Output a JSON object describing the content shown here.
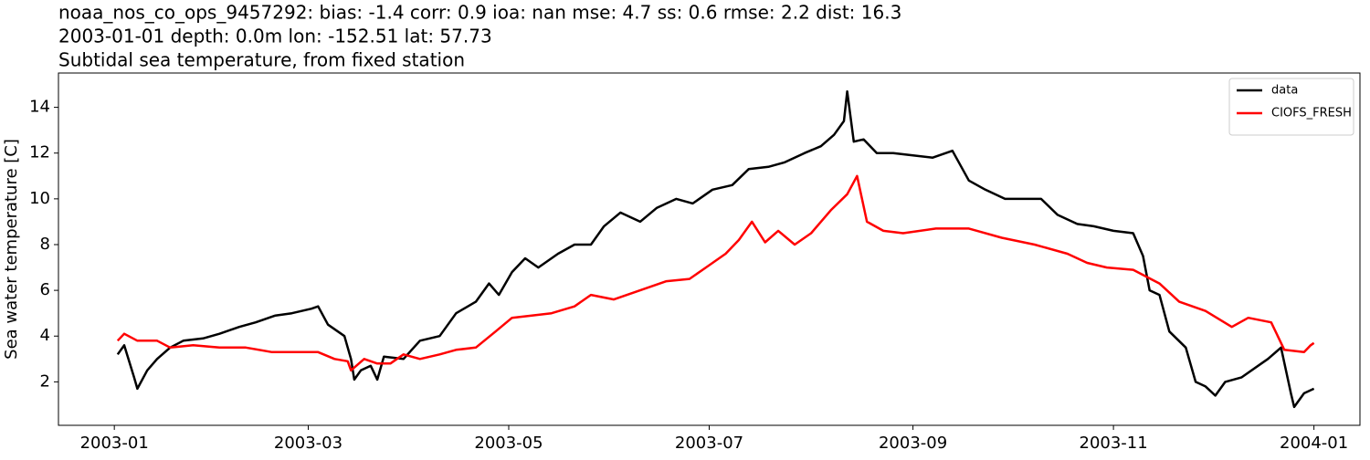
{
  "chart_data": {
    "type": "line",
    "title": "noaa_nos_co_ops_9457292: bias: -1.4  corr: 0.9  ioa: nan  mse: 4.7  ss: 0.6  rmse: 2.2  dist: 16.3",
    "subtitle": "2003-01-01 depth: 0.0m lon: -152.51 lat: 57.73",
    "subtitle2": "Subtidal sea temperature, from fixed station",
    "y_label": "Sea water temperature [C]",
    "xlim": [
      -17,
      379
    ],
    "ylim": [
      0.1,
      15.5
    ],
    "xticks": [
      {
        "value": 0,
        "label": "2003-01"
      },
      {
        "value": 59,
        "label": "2003-03"
      },
      {
        "value": 120,
        "label": "2003-05"
      },
      {
        "value": 181,
        "label": "2003-07"
      },
      {
        "value": 243,
        "label": "2003-09"
      },
      {
        "value": 304,
        "label": "2003-11"
      },
      {
        "value": 365,
        "label": "2004-01"
      }
    ],
    "yticks": [
      2,
      4,
      6,
      8,
      10,
      12,
      14
    ],
    "legend": "upper right",
    "series": [
      {
        "name": "data",
        "color": "#000000",
        "x": [
          1,
          3,
          6,
          7,
          10,
          13,
          17,
          21,
          27,
          32,
          38,
          43,
          49,
          54,
          60,
          62,
          65,
          70,
          72,
          73,
          75,
          78,
          80,
          82,
          88,
          93,
          99,
          104,
          110,
          114,
          117,
          121,
          125,
          129,
          135,
          140,
          145,
          149,
          154,
          160,
          165,
          171,
          176,
          182,
          188,
          193,
          199,
          204,
          210,
          215,
          219,
          222,
          223,
          225,
          228,
          232,
          237,
          243,
          249,
          255,
          260,
          265,
          271,
          276,
          282,
          287,
          293,
          298,
          304,
          310,
          313,
          315,
          318,
          321,
          326,
          329,
          332,
          335,
          338,
          343,
          349,
          351,
          355,
          358,
          359,
          362,
          365
        ],
        "values": [
          3.2,
          3.6,
          2.2,
          1.7,
          2.5,
          3.0,
          3.5,
          3.8,
          3.9,
          4.1,
          4.4,
          4.6,
          4.9,
          5.0,
          5.2,
          5.3,
          4.5,
          4.0,
          3.0,
          2.1,
          2.5,
          2.7,
          2.1,
          3.1,
          3.0,
          3.8,
          4.0,
          5.0,
          5.5,
          6.3,
          5.8,
          6.8,
          7.4,
          7.0,
          7.6,
          8.0,
          8.0,
          8.8,
          9.4,
          9.0,
          9.6,
          10.0,
          9.8,
          10.4,
          10.6,
          11.3,
          11.4,
          11.6,
          12.0,
          12.3,
          12.8,
          13.4,
          14.7,
          12.5,
          12.6,
          12.0,
          12.0,
          11.9,
          11.8,
          12.1,
          10.8,
          10.4,
          10.0,
          10.0,
          10.0,
          9.3,
          8.9,
          8.8,
          8.6,
          8.5,
          7.5,
          6.0,
          5.8,
          4.2,
          3.5,
          2.0,
          1.8,
          1.4,
          2.0,
          2.2,
          2.8,
          3.0,
          3.5,
          1.5,
          0.9,
          1.5,
          1.7
        ]
      },
      {
        "name": "CIOFS_FRESH",
        "color": "#ff0000",
        "x": [
          1,
          3,
          7,
          13,
          17,
          24,
          32,
          40,
          48,
          55,
          62,
          67,
          71,
          72,
          76,
          80,
          84,
          88,
          93,
          99,
          104,
          110,
          116,
          121,
          127,
          133,
          140,
          145,
          152,
          160,
          168,
          175,
          180,
          186,
          190,
          194,
          198,
          202,
          207,
          212,
          218,
          223,
          226,
          229,
          234,
          240,
          250,
          260,
          270,
          280,
          290,
          296,
          302,
          310,
          318,
          324,
          332,
          340,
          345,
          352,
          356,
          362,
          364,
          365
        ],
        "values": [
          3.8,
          4.1,
          3.8,
          3.8,
          3.5,
          3.6,
          3.5,
          3.5,
          3.3,
          3.3,
          3.3,
          3.0,
          2.9,
          2.5,
          3.0,
          2.8,
          2.8,
          3.2,
          3.0,
          3.2,
          3.4,
          3.5,
          4.2,
          4.8,
          4.9,
          5.0,
          5.3,
          5.8,
          5.6,
          6.0,
          6.4,
          6.5,
          7.0,
          7.6,
          8.2,
          9.0,
          8.1,
          8.6,
          8.0,
          8.5,
          9.5,
          10.2,
          11.0,
          9.0,
          8.6,
          8.5,
          8.7,
          8.7,
          8.3,
          8.0,
          7.6,
          7.2,
          7.0,
          6.9,
          6.3,
          5.5,
          5.1,
          4.4,
          4.8,
          4.6,
          3.4,
          3.3,
          3.6,
          3.7
        ]
      }
    ]
  }
}
